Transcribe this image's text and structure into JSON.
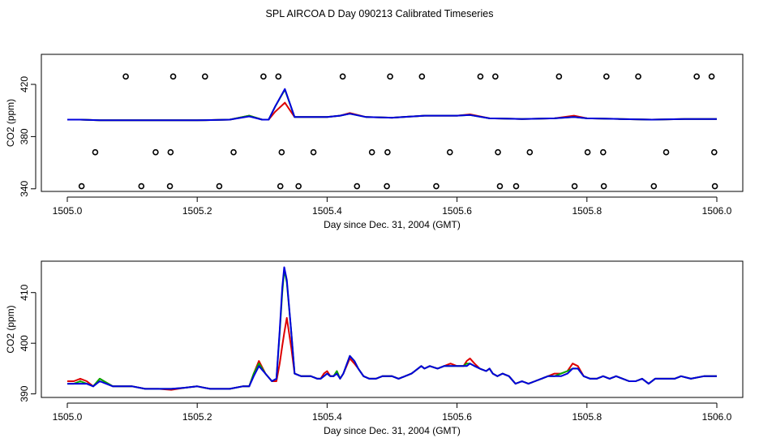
{
  "page_title": "SPL AIRCOA D  Day 090213  Calibrated Timeseries",
  "colors": {
    "red": "#dd0000",
    "green": "#00aa00",
    "blue": "#0000dd",
    "marker": "#000000",
    "frame": "#000000"
  },
  "chart_data": [
    {
      "type": "line",
      "title": "",
      "xlabel": "Day since Dec. 31, 2004 (GMT)",
      "ylabel": "CO2 (ppm)",
      "xlim": [
        1505.0,
        1506.0
      ],
      "ylim": [
        338,
        443
      ],
      "xticks": [
        1505.0,
        1505.2,
        1505.4,
        1505.6,
        1505.8,
        1506.0
      ],
      "xtick_labels": [
        "1505.0",
        "1505.2",
        "1505.4",
        "1505.6",
        "1505.8",
        "1506.0"
      ],
      "yticks": [
        340,
        380,
        420
      ],
      "ytick_labels": [
        "340",
        "380",
        "420"
      ],
      "marker_rows": [
        {
          "y": 426,
          "x": [
            1505.09,
            1505.163,
            1505.212,
            1505.302,
            1505.325,
            1505.424,
            1505.497,
            1505.546,
            1505.636,
            1505.659,
            1505.757,
            1505.83,
            1505.879,
            1505.969,
            1505.992
          ]
        },
        {
          "y": 368,
          "x": [
            1505.043,
            1505.136,
            1505.159,
            1505.256,
            1505.33,
            1505.379,
            1505.469,
            1505.493,
            1505.589,
            1505.663,
            1505.712,
            1505.801,
            1505.825,
            1505.922,
            1505.996
          ]
        },
        {
          "y": 342,
          "x": [
            1505.022,
            1505.114,
            1505.158,
            1505.234,
            1505.328,
            1505.356,
            1505.446,
            1505.492,
            1505.568,
            1505.666,
            1505.691,
            1505.781,
            1505.826,
            1505.903,
            1505.997
          ]
        }
      ],
      "series": [
        {
          "name": "red",
          "color": "red",
          "x": [
            1505.0,
            1505.02,
            1505.05,
            1505.1,
            1505.15,
            1505.2,
            1505.25,
            1505.28,
            1505.3,
            1505.31,
            1505.32,
            1505.335,
            1505.35,
            1505.38,
            1505.4,
            1505.42,
            1505.435,
            1505.46,
            1505.5,
            1505.55,
            1505.6,
            1505.62,
            1505.65,
            1505.7,
            1505.75,
            1505.78,
            1505.8,
            1505.85,
            1505.9,
            1505.95,
            1506.0
          ],
          "y": [
            393,
            393,
            392.5,
            392.5,
            392.5,
            392.5,
            393,
            396,
            393,
            393,
            399,
            406,
            395,
            395,
            395,
            396,
            398,
            395,
            394.5,
            396,
            396,
            397,
            394,
            393.5,
            394,
            396,
            394,
            393.5,
            393,
            393.5,
            393.5
          ]
        },
        {
          "name": "green",
          "color": "green",
          "x": [
            1505.0,
            1505.02,
            1505.05,
            1505.1,
            1505.15,
            1505.2,
            1505.25,
            1505.28,
            1505.3,
            1505.31,
            1505.32,
            1505.335,
            1505.35,
            1505.38,
            1505.4,
            1505.42,
            1505.435,
            1505.46,
            1505.5,
            1505.55,
            1505.6,
            1505.62,
            1505.65,
            1505.7,
            1505.75,
            1505.78,
            1505.8,
            1505.85,
            1505.9,
            1505.95,
            1506.0
          ],
          "y": [
            393,
            393,
            392.5,
            392.5,
            392.5,
            392.5,
            393,
            396,
            393,
            393,
            403,
            416,
            395,
            395,
            395,
            396,
            397.5,
            395,
            394.5,
            396,
            396,
            396.5,
            394,
            393.5,
            394,
            395,
            394,
            393.5,
            393,
            393.5,
            393.5
          ]
        },
        {
          "name": "blue",
          "color": "blue",
          "x": [
            1505.0,
            1505.02,
            1505.05,
            1505.1,
            1505.15,
            1505.2,
            1505.25,
            1505.28,
            1505.3,
            1505.31,
            1505.32,
            1505.335,
            1505.35,
            1505.38,
            1505.4,
            1505.42,
            1505.435,
            1505.46,
            1505.5,
            1505.55,
            1505.6,
            1505.62,
            1505.65,
            1505.7,
            1505.75,
            1505.78,
            1505.8,
            1505.85,
            1505.9,
            1505.95,
            1506.0
          ],
          "y": [
            393,
            393,
            392.5,
            392.5,
            392.5,
            392.5,
            393,
            395.5,
            393,
            393,
            403,
            416.5,
            395,
            395,
            395,
            396,
            397.5,
            395,
            394.5,
            396,
            396,
            396.5,
            394,
            393.5,
            394,
            395,
            394,
            393.5,
            393,
            393.5,
            393.5
          ]
        }
      ]
    },
    {
      "type": "line",
      "title": "",
      "xlabel": "Day since Dec. 31, 2004 (GMT)",
      "ylabel": "CO2 (ppm)",
      "xlim": [
        1505.0,
        1506.0
      ],
      "ylim": [
        389.3,
        416.2
      ],
      "xticks": [
        1505.0,
        1505.2,
        1505.4,
        1505.6,
        1505.8,
        1506.0
      ],
      "xtick_labels": [
        "1505.0",
        "1505.2",
        "1505.4",
        "1505.6",
        "1505.8",
        "1506.0"
      ],
      "yticks": [
        390,
        400,
        410
      ],
      "ytick_labels": [
        "390",
        "400",
        "410"
      ],
      "series": [
        {
          "name": "red",
          "color": "red",
          "x": [
            1505.0,
            1505.01,
            1505.02,
            1505.03,
            1505.04,
            1505.05,
            1505.07,
            1505.1,
            1505.12,
            1505.14,
            1505.16,
            1505.18,
            1505.2,
            1505.22,
            1505.25,
            1505.27,
            1505.28,
            1505.287,
            1505.295,
            1505.305,
            1505.315,
            1505.322,
            1505.327,
            1505.331,
            1505.334,
            1505.338,
            1505.345,
            1505.35,
            1505.36,
            1505.375,
            1505.385,
            1505.39,
            1505.395,
            1505.4,
            1505.405,
            1505.41,
            1505.415,
            1505.42,
            1505.425,
            1505.435,
            1505.442,
            1505.448,
            1505.456,
            1505.465,
            1505.475,
            1505.485,
            1505.5,
            1505.51,
            1505.52,
            1505.53,
            1505.545,
            1505.55,
            1505.558,
            1505.57,
            1505.58,
            1505.59,
            1505.6,
            1505.61,
            1505.615,
            1505.62,
            1505.627,
            1505.635,
            1505.645,
            1505.65,
            1505.655,
            1505.662,
            1505.67,
            1505.68,
            1505.69,
            1505.7,
            1505.71,
            1505.72,
            1505.73,
            1505.74,
            1505.75,
            1505.76,
            1505.77,
            1505.778,
            1505.786,
            1505.795,
            1505.805,
            1505.815,
            1505.825,
            1505.835,
            1505.845,
            1505.855,
            1505.865,
            1505.875,
            1505.885,
            1505.895,
            1505.905,
            1505.915,
            1505.925,
            1505.935,
            1505.945,
            1505.96,
            1505.98,
            1506.0
          ],
          "y": [
            392.5,
            392.5,
            393,
            392.5,
            391.5,
            393,
            391.5,
            391.5,
            391,
            391,
            390.8,
            391.2,
            391.5,
            391,
            391,
            391.5,
            391.5,
            394,
            396.5,
            394,
            392.5,
            392.5,
            396,
            399.5,
            402,
            405,
            399,
            394,
            393.5,
            393.5,
            393,
            393,
            394,
            394.5,
            393.5,
            393.5,
            394.5,
            393,
            394,
            397,
            396,
            395,
            393.5,
            393,
            393,
            393.5,
            393.5,
            393,
            393.5,
            394,
            395.5,
            395,
            395.5,
            395,
            395.5,
            396,
            395.5,
            395.5,
            396.5,
            397,
            396,
            395,
            394.5,
            395,
            394,
            393.5,
            394,
            393.5,
            392,
            392.5,
            392,
            392.5,
            393,
            393.5,
            394,
            394,
            394.5,
            396,
            395.5,
            393.5,
            393,
            393,
            393.5,
            393,
            393.5,
            393,
            392.5,
            392.5,
            393,
            392,
            393,
            393,
            393,
            393,
            393.5,
            393,
            393.5,
            393.5
          ]
        },
        {
          "name": "green",
          "color": "green",
          "x": [
            1505.0,
            1505.01,
            1505.02,
            1505.03,
            1505.04,
            1505.05,
            1505.07,
            1505.1,
            1505.12,
            1505.14,
            1505.16,
            1505.18,
            1505.2,
            1505.22,
            1505.25,
            1505.27,
            1505.28,
            1505.287,
            1505.295,
            1505.305,
            1505.315,
            1505.322,
            1505.327,
            1505.331,
            1505.334,
            1505.338,
            1505.345,
            1505.35,
            1505.36,
            1505.375,
            1505.385,
            1505.39,
            1505.395,
            1505.4,
            1505.405,
            1505.41,
            1505.415,
            1505.42,
            1505.425,
            1505.435,
            1505.442,
            1505.448,
            1505.456,
            1505.465,
            1505.475,
            1505.485,
            1505.5,
            1505.51,
            1505.52,
            1505.53,
            1505.545,
            1505.55,
            1505.558,
            1505.57,
            1505.58,
            1505.59,
            1505.6,
            1505.61,
            1505.615,
            1505.62,
            1505.627,
            1505.635,
            1505.645,
            1505.65,
            1505.655,
            1505.662,
            1505.67,
            1505.68,
            1505.69,
            1505.7,
            1505.71,
            1505.72,
            1505.73,
            1505.74,
            1505.75,
            1505.76,
            1505.77,
            1505.778,
            1505.786,
            1505.795,
            1505.805,
            1505.815,
            1505.825,
            1505.835,
            1505.845,
            1505.855,
            1505.865,
            1505.875,
            1505.885,
            1505.895,
            1505.905,
            1505.915,
            1505.925,
            1505.935,
            1505.945,
            1505.96,
            1505.98,
            1506.0
          ],
          "y": [
            392,
            392,
            392.5,
            392,
            391.5,
            393,
            391.5,
            391.5,
            391,
            391,
            391,
            391.2,
            391.5,
            391,
            391,
            391.5,
            391.5,
            394,
            396,
            394,
            392.5,
            393,
            402,
            410,
            414.5,
            412,
            402,
            394,
            393.5,
            393.5,
            393,
            393,
            393.5,
            394,
            393.5,
            393.5,
            394.5,
            393,
            394,
            397.5,
            396.5,
            395,
            393.5,
            393,
            393,
            393.5,
            393.5,
            393,
            393.5,
            394,
            395.5,
            395,
            395.5,
            395,
            395.5,
            395.5,
            395.5,
            395.5,
            396,
            396,
            395.5,
            395,
            394.5,
            395,
            394,
            393.5,
            394,
            393.5,
            392,
            392.5,
            392,
            392.5,
            393,
            393.5,
            393.5,
            394,
            394.5,
            395,
            395,
            393.5,
            393,
            393,
            393.5,
            393,
            393.5,
            393,
            392.5,
            392.5,
            393,
            392,
            393,
            393,
            393,
            393,
            393.5,
            393,
            393.5,
            393.5
          ]
        },
        {
          "name": "blue",
          "color": "blue",
          "x": [
            1505.0,
            1505.01,
            1505.02,
            1505.03,
            1505.04,
            1505.05,
            1505.07,
            1505.1,
            1505.12,
            1505.14,
            1505.16,
            1505.18,
            1505.2,
            1505.22,
            1505.25,
            1505.27,
            1505.28,
            1505.287,
            1505.295,
            1505.305,
            1505.315,
            1505.322,
            1505.327,
            1505.331,
            1505.334,
            1505.338,
            1505.345,
            1505.35,
            1505.36,
            1505.375,
            1505.385,
            1505.39,
            1505.395,
            1505.4,
            1505.405,
            1505.41,
            1505.415,
            1505.42,
            1505.425,
            1505.435,
            1505.442,
            1505.448,
            1505.456,
            1505.465,
            1505.475,
            1505.485,
            1505.5,
            1505.51,
            1505.52,
            1505.53,
            1505.545,
            1505.55,
            1505.558,
            1505.57,
            1505.58,
            1505.59,
            1505.6,
            1505.61,
            1505.615,
            1505.62,
            1505.627,
            1505.635,
            1505.645,
            1505.65,
            1505.655,
            1505.662,
            1505.67,
            1505.68,
            1505.69,
            1505.7,
            1505.71,
            1505.72,
            1505.73,
            1505.74,
            1505.75,
            1505.76,
            1505.77,
            1505.778,
            1505.786,
            1505.795,
            1505.805,
            1505.815,
            1505.825,
            1505.835,
            1505.845,
            1505.855,
            1505.865,
            1505.875,
            1505.885,
            1505.895,
            1505.905,
            1505.915,
            1505.925,
            1505.935,
            1505.945,
            1505.96,
            1505.98,
            1506.0
          ],
          "y": [
            392,
            392,
            392,
            392,
            391.5,
            392.5,
            391.5,
            391.5,
            391,
            391,
            391,
            391.2,
            391.5,
            391,
            391,
            391.5,
            391.5,
            393.5,
            395.5,
            394,
            392.5,
            393,
            402.5,
            411,
            415,
            412.5,
            402,
            394,
            393.5,
            393.5,
            393,
            393,
            393.5,
            394,
            393.5,
            393.5,
            394,
            393,
            394,
            397.5,
            396.5,
            395,
            393.5,
            393,
            393,
            393.5,
            393.5,
            393,
            393.5,
            394,
            395.5,
            395,
            395.5,
            395,
            395.5,
            395.5,
            395.5,
            395.5,
            395.5,
            396,
            395.5,
            395,
            394.5,
            395,
            394,
            393.5,
            394,
            393.5,
            392,
            392.5,
            392,
            392.5,
            393,
            393.5,
            393.5,
            393.5,
            394,
            395,
            395,
            393.5,
            393,
            393,
            393.5,
            393,
            393.5,
            393,
            392.5,
            392.5,
            393,
            392,
            393,
            393,
            393,
            393,
            393.5,
            393,
            393.5,
            393.5
          ]
        }
      ]
    }
  ]
}
